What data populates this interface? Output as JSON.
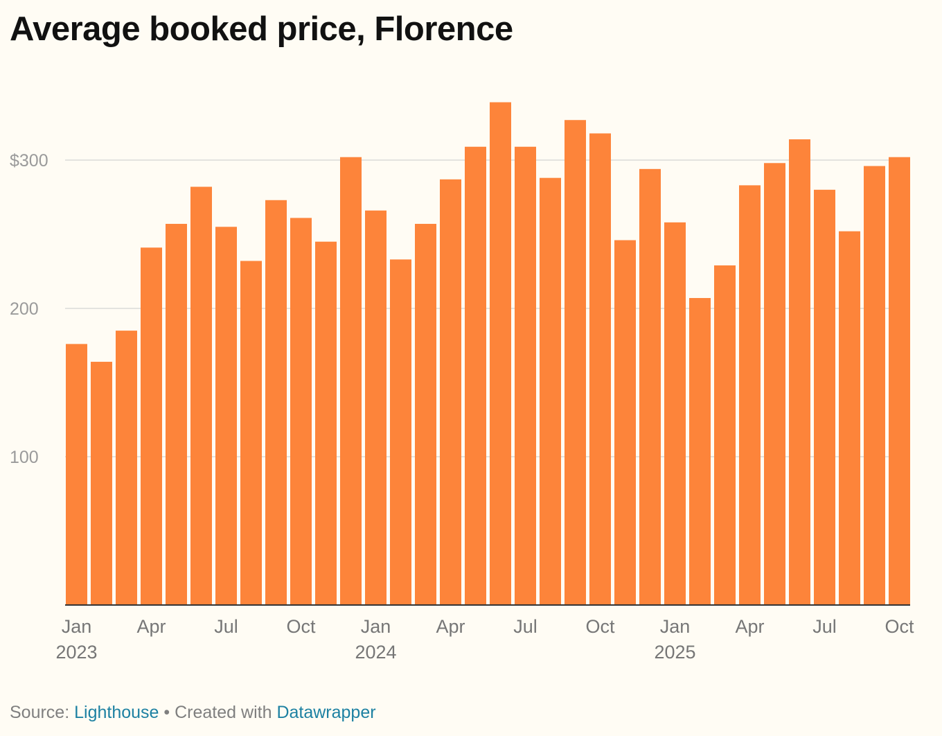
{
  "title": "Average booked price, Florence",
  "footer": {
    "source_label": "Source:",
    "source_name": "Lighthouse",
    "separator": "•",
    "created_label": "Created with",
    "created_name": "Datawrapper"
  },
  "colors": {
    "bar": "#fd843a",
    "background": "#fffcf4",
    "grid": "#e3e3df",
    "axis": "#333333",
    "tick_text": "#767676",
    "y_tick_text": "#9a9a9a",
    "link": "#1d81a2"
  },
  "chart_data": {
    "type": "bar",
    "title": "Average booked price, Florence",
    "xlabel": "",
    "ylabel": "",
    "ylim": [
      0,
      340
    ],
    "grid": true,
    "categories": [
      "Jan 2023",
      "Feb 2023",
      "Mar 2023",
      "Apr 2023",
      "May 2023",
      "Jun 2023",
      "Jul 2023",
      "Aug 2023",
      "Sep 2023",
      "Oct 2023",
      "Nov 2023",
      "Dec 2023",
      "Jan 2024",
      "Feb 2024",
      "Mar 2024",
      "Apr 2024",
      "May 2024",
      "Jun 2024",
      "Jul 2024",
      "Aug 2024",
      "Sep 2024",
      "Oct 2024",
      "Nov 2024",
      "Dec 2024",
      "Jan 2025",
      "Feb 2025",
      "Mar 2025",
      "Apr 2025",
      "May 2025",
      "Jun 2025",
      "Jul 2025",
      "Aug 2025",
      "Sep 2025",
      "Oct 2025"
    ],
    "values": [
      176,
      164,
      185,
      241,
      257,
      282,
      255,
      232,
      273,
      261,
      245,
      302,
      266,
      233,
      257,
      287,
      309,
      339,
      309,
      288,
      327,
      318,
      246,
      294,
      258,
      207,
      229,
      283,
      298,
      314,
      280,
      252,
      296,
      302
    ],
    "y_ticks": [
      {
        "value": 100,
        "label": "100"
      },
      {
        "value": 200,
        "label": "200"
      },
      {
        "value": 300,
        "label": "$300"
      }
    ],
    "x_ticks": [
      {
        "index": 0,
        "label": "Jan",
        "year": "2023"
      },
      {
        "index": 3,
        "label": "Apr",
        "year": ""
      },
      {
        "index": 6,
        "label": "Jul",
        "year": ""
      },
      {
        "index": 9,
        "label": "Oct",
        "year": ""
      },
      {
        "index": 12,
        "label": "Jan",
        "year": "2024"
      },
      {
        "index": 15,
        "label": "Apr",
        "year": ""
      },
      {
        "index": 18,
        "label": "Jul",
        "year": ""
      },
      {
        "index": 21,
        "label": "Oct",
        "year": ""
      },
      {
        "index": 24,
        "label": "Jan",
        "year": "2025"
      },
      {
        "index": 27,
        "label": "Apr",
        "year": ""
      },
      {
        "index": 30,
        "label": "Jul",
        "year": ""
      },
      {
        "index": 33,
        "label": "Oct",
        "year": ""
      }
    ]
  }
}
